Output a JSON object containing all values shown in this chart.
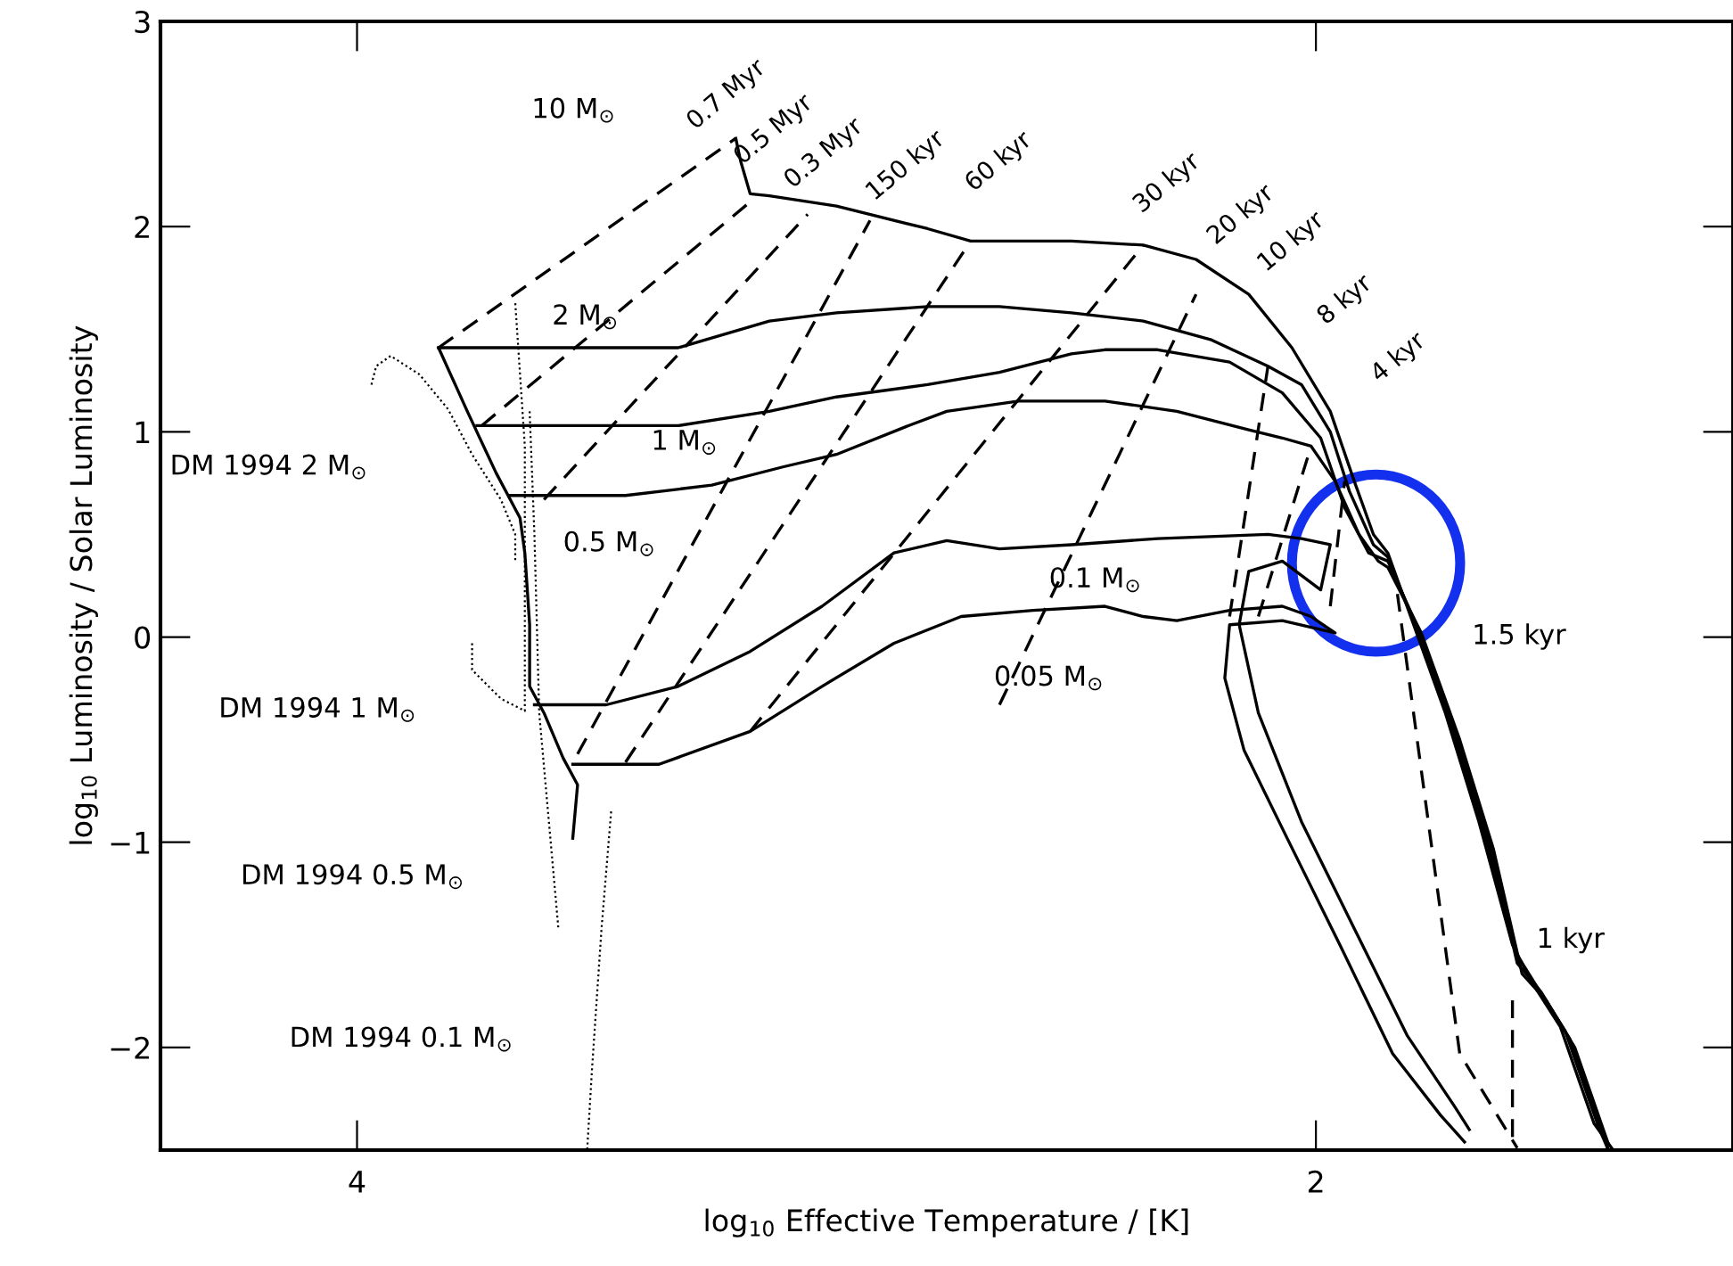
{
  "chart_data": {
    "type": "line",
    "xlabel": "log$_{10}$ Effective Temperature / [K]",
    "ylabel": "log$_{10}$ Luminosity / Solar Luminosity",
    "xlim": [
      4.41,
      1.13
    ],
    "ylim": [
      -2.5,
      3.0
    ],
    "xticks": [
      4,
      2
    ],
    "yticks": [
      {
        "value": -2,
        "label": "−2"
      },
      {
        "value": -1,
        "label": "−1"
      },
      0,
      1,
      2,
      3
    ],
    "series": [
      {
        "color": "#000000",
        "line_style": "solid",
        "x": [
          3.21,
          3.2,
          3.18,
          3.14,
          3.0,
          2.81,
          2.72,
          2.51,
          2.36,
          2.25,
          2.14,
          2.05,
          1.97,
          1.92,
          1.88,
          1.85,
          1.81,
          1.73,
          1.66,
          1.59,
          1.55,
          1.49,
          1.42,
          1.38
        ],
        "values": [
          2.43,
          2.32,
          2.16,
          2.15,
          2.1,
          1.99,
          1.93,
          1.93,
          1.91,
          1.84,
          1.67,
          1.41,
          1.1,
          0.76,
          0.5,
          0.41,
          0.15,
          -0.37,
          -0.9,
          -1.5,
          -1.68,
          -1.9,
          -2.37,
          -2.5
        ]
      },
      {
        "color": "#000000",
        "line_style": "solid",
        "x": [
          3.83,
          3.33,
          3.14,
          3.0,
          2.81,
          2.66,
          2.51,
          2.36,
          2.22,
          2.1,
          2.03,
          1.97,
          1.93,
          1.88,
          1.85,
          1.8,
          1.72,
          1.65,
          1.58,
          1.54,
          1.48,
          1.41,
          1.39
        ],
        "values": [
          1.41,
          1.41,
          1.54,
          1.58,
          1.61,
          1.61,
          1.58,
          1.54,
          1.45,
          1.32,
          1.23,
          1.0,
          0.71,
          0.45,
          0.39,
          0.1,
          -0.42,
          -0.94,
          -1.55,
          -1.7,
          -1.92,
          -2.39,
          -2.5
        ]
      },
      {
        "color": "#000000",
        "line_style": "solid",
        "x": [
          3.75,
          3.33,
          3.14,
          3.0,
          2.81,
          2.66,
          2.51,
          2.44,
          2.33,
          2.18,
          2.07,
          1.99,
          1.94,
          1.89,
          1.85,
          1.79,
          1.71,
          1.64,
          1.58,
          1.53,
          1.47,
          1.4,
          1.39
        ],
        "values": [
          1.03,
          1.03,
          1.1,
          1.17,
          1.23,
          1.29,
          1.38,
          1.4,
          1.4,
          1.34,
          1.19,
          0.97,
          0.63,
          0.41,
          0.37,
          0.06,
          -0.46,
          -0.98,
          -1.59,
          -1.73,
          -1.96,
          -2.42,
          -2.5
        ]
      },
      {
        "color": "#000000",
        "line_style": "solid",
        "x": [
          3.68,
          3.44,
          3.26,
          3.11,
          3.0,
          2.85,
          2.77,
          2.62,
          2.44,
          2.29,
          2.14,
          2.07,
          2.01,
          1.96,
          1.91,
          1.87,
          1.85,
          1.78,
          1.7,
          1.63,
          1.57,
          1.52,
          1.46,
          1.39
        ],
        "values": [
          0.69,
          0.69,
          0.74,
          0.83,
          0.89,
          1.03,
          1.1,
          1.15,
          1.15,
          1.1,
          1.01,
          0.97,
          0.93,
          0.76,
          0.5,
          0.37,
          0.34,
          0.02,
          -0.5,
          -1.03,
          -1.64,
          -1.77,
          -2.0,
          -2.47
        ]
      },
      {
        "color": "#000000",
        "line_style": "solid",
        "x": [
          3.63,
          3.48,
          3.33,
          3.18,
          3.03,
          2.88,
          2.77,
          2.66,
          2.51,
          2.33,
          2.1,
          2.03,
          1.97,
          1.99,
          2.07,
          2.14,
          2.16,
          2.12,
          2.03,
          1.92,
          1.81,
          1.71,
          1.68
        ],
        "values": [
          -0.33,
          -0.33,
          -0.24,
          -0.07,
          0.15,
          0.41,
          0.47,
          0.43,
          0.45,
          0.48,
          0.5,
          0.48,
          0.45,
          0.23,
          0.37,
          0.32,
          0.06,
          -0.37,
          -0.9,
          -1.42,
          -1.94,
          -2.29,
          -2.4
        ]
      },
      {
        "color": "#000000",
        "line_style": "solid",
        "x": [
          3.55,
          3.37,
          3.18,
          3.03,
          2.88,
          2.74,
          2.59,
          2.44,
          2.36,
          2.29,
          2.18,
          2.07,
          2.01,
          1.96,
          2.07,
          2.18,
          2.19,
          2.15,
          2.06,
          1.95,
          1.84,
          1.74,
          1.69
        ],
        "values": [
          -0.62,
          -0.62,
          -0.46,
          -0.24,
          -0.03,
          0.1,
          0.13,
          0.15,
          0.1,
          0.08,
          0.13,
          0.15,
          0.1,
          0.02,
          0.08,
          0.06,
          -0.2,
          -0.55,
          -0.98,
          -1.5,
          -2.03,
          -2.33,
          -2.46
        ]
      },
      {
        "color": "#000000",
        "line_style": "solid",
        "x": [
          3.83,
          3.77,
          3.71,
          3.66,
          3.65,
          3.64,
          3.64,
          3.61,
          3.57,
          3.54,
          3.55
        ],
        "values": [
          1.41,
          1.1,
          0.8,
          0.58,
          0.41,
          0.06,
          -0.24,
          -0.37,
          -0.59,
          -0.72,
          -0.98
        ]
      },
      {
        "color": "#000000",
        "line_style": "dashed",
        "x": [
          3.83,
          3.21
        ],
        "values": [
          1.41,
          2.43
        ]
      },
      {
        "color": "#000000",
        "line_style": "dashed",
        "x": [
          3.74,
          3.17
        ],
        "values": [
          1.03,
          2.14
        ]
      },
      {
        "color": "#000000",
        "line_style": "dashed",
        "x": [
          3.61,
          3.06
        ],
        "values": [
          0.67,
          2.06
        ]
      },
      {
        "color": "#000000",
        "line_style": "dashed",
        "x": [
          3.54,
          2.93
        ],
        "values": [
          -0.57,
          2.03
        ]
      },
      {
        "color": "#000000",
        "line_style": "dashed",
        "x": [
          3.44,
          2.72
        ],
        "values": [
          -0.61,
          1.93
        ]
      },
      {
        "color": "#000000",
        "line_style": "dashed",
        "x": [
          3.18,
          2.36
        ],
        "values": [
          -0.46,
          1.91
        ]
      },
      {
        "color": "#000000",
        "line_style": "dashed",
        "x": [
          2.66,
          2.25
        ],
        "values": [
          -0.33,
          1.67
        ]
      },
      {
        "color": "#000000",
        "line_style": "dashed",
        "x": [
          2.18,
          2.1
        ],
        "values": [
          0.1,
          1.32
        ]
      },
      {
        "color": "#000000",
        "line_style": "dashed",
        "x": [
          2.12,
          2.01
        ],
        "values": [
          0.1,
          0.93
        ]
      },
      {
        "color": "#000000",
        "line_style": "dashed",
        "x": [
          1.97,
          1.94
        ],
        "values": [
          0.15,
          0.76
        ]
      },
      {
        "color": "#000000",
        "line_style": "dashed",
        "x": [
          1.83,
          1.7,
          1.58
        ],
        "values": [
          0.21,
          -2.03,
          -2.49
        ]
      },
      {
        "color": "#000000",
        "line_style": "dashed",
        "x": [
          1.59,
          1.59
        ],
        "values": [
          -1.77,
          -2.49
        ]
      },
      {
        "color": "#000000",
        "line_style": "dotted",
        "x": [
          3.97,
          3.96,
          3.93,
          3.87,
          3.81,
          3.76,
          3.7,
          3.67,
          3.67
        ],
        "values": [
          1.23,
          1.32,
          1.37,
          1.28,
          1.11,
          0.89,
          0.67,
          0.5,
          0.37
        ]
      },
      {
        "color": "#000000",
        "line_style": "dotted",
        "x": [
          3.76,
          3.76,
          3.7,
          3.65,
          3.65,
          3.65,
          3.67
        ],
        "values": [
          -0.03,
          -0.16,
          -0.3,
          -0.36,
          0.15,
          0.93,
          1.63
        ]
      },
      {
        "color": "#000000",
        "line_style": "dotted",
        "x": [
          3.64,
          3.63,
          3.62,
          3.58
        ],
        "values": [
          1.1,
          0.5,
          -0.37,
          -1.42
        ]
      },
      {
        "color": "#000000",
        "line_style": "dotted",
        "x": [
          3.47,
          3.49,
          3.51,
          3.52
        ],
        "values": [
          -0.85,
          -1.42,
          -2.11,
          -2.5
        ]
      }
    ],
    "annotations": [
      "10 M$_{⊙}$",
      "2 M$_{⊙}$",
      "1 M$_{⊙}$",
      "0.5 M$_{⊙}$",
      "0.1 M$_{⊙}$",
      "0.05 M$_{⊙}$",
      "DM 1994 2 M$_{⊙}$",
      "DM 1994 1 M$_{⊙}$",
      "DM 1994 0.5 M$_{⊙}$",
      "DM 1994 0.1 M$_{⊙}$",
      "1.5 kyr",
      "1 kyr",
      "0.7 Myr",
      "0.5 Myr",
      "0.3 Myr",
      "150 kyr",
      "60 kyr",
      "30 kyr",
      "20 kyr",
      "10 kyr",
      "8 kyr",
      "4 kyr"
    ]
  }
}
